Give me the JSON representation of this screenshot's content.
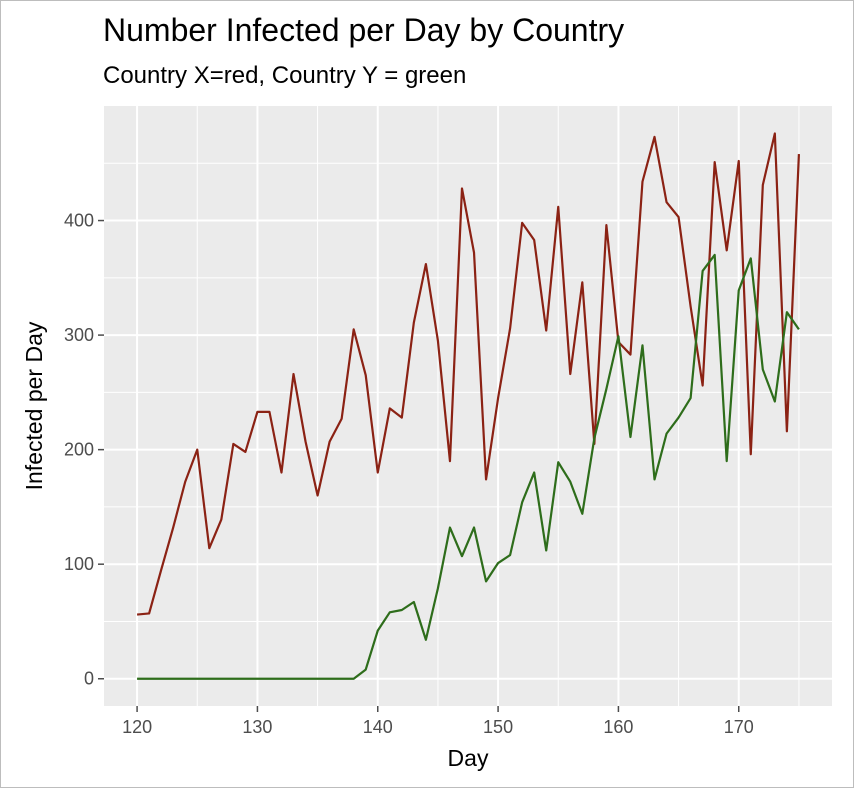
{
  "chart_data": {
    "type": "line",
    "title": "Number Infected per Day by Country",
    "subtitle": "Country X=red, Country Y = green",
    "xlabel": "Day",
    "ylabel": "Infected per Day",
    "xlim": [
      117.25,
      177.75
    ],
    "ylim": [
      -23.8,
      500
    ],
    "x_ticks": [
      120,
      130,
      140,
      150,
      160,
      170
    ],
    "y_ticks": [
      0,
      100,
      200,
      300,
      400
    ],
    "grid": true,
    "x": [
      120,
      121,
      122,
      123,
      124,
      125,
      126,
      127,
      128,
      129,
      130,
      131,
      132,
      133,
      134,
      135,
      136,
      137,
      138,
      139,
      140,
      141,
      142,
      143,
      144,
      145,
      146,
      147,
      148,
      149,
      150,
      151,
      152,
      153,
      154,
      155,
      156,
      157,
      158,
      159,
      160,
      161,
      162,
      163,
      164,
      165,
      166,
      167,
      168,
      169,
      170,
      171,
      172,
      173,
      174,
      175
    ],
    "series": [
      {
        "color": "#8b2214",
        "values": [
          56,
          57,
          95,
          132,
          172,
          200,
          114,
          139,
          205,
          198,
          233,
          233,
          180,
          266,
          207,
          160,
          207,
          227,
          305,
          265,
          180,
          236,
          228,
          311,
          362,
          295,
          190,
          428,
          372,
          174,
          245,
          306,
          398,
          383,
          304,
          412,
          266,
          346,
          205,
          396,
          294,
          283,
          434,
          473,
          416,
          403,
          325,
          256,
          451,
          374,
          452,
          196,
          431,
          476,
          216,
          458
        ]
      },
      {
        "color": "#2e6d1b",
        "values": [
          0,
          0,
          0,
          0,
          0,
          0,
          0,
          0,
          0,
          0,
          0,
          0,
          0,
          0,
          0,
          0,
          0,
          0,
          0,
          8,
          42,
          58,
          60,
          67,
          34,
          79,
          132,
          107,
          132,
          85,
          101,
          108,
          154,
          180,
          112,
          189,
          172,
          144,
          210,
          253,
          299,
          211,
          291,
          174,
          214,
          228,
          245,
          356,
          370,
          190,
          339,
          367,
          270,
          242,
          320,
          305
        ]
      }
    ]
  },
  "colors": {
    "panel_background": "#ebebeb",
    "grid_color": "#ffffff",
    "tick_color": "#4d4d4d"
  }
}
